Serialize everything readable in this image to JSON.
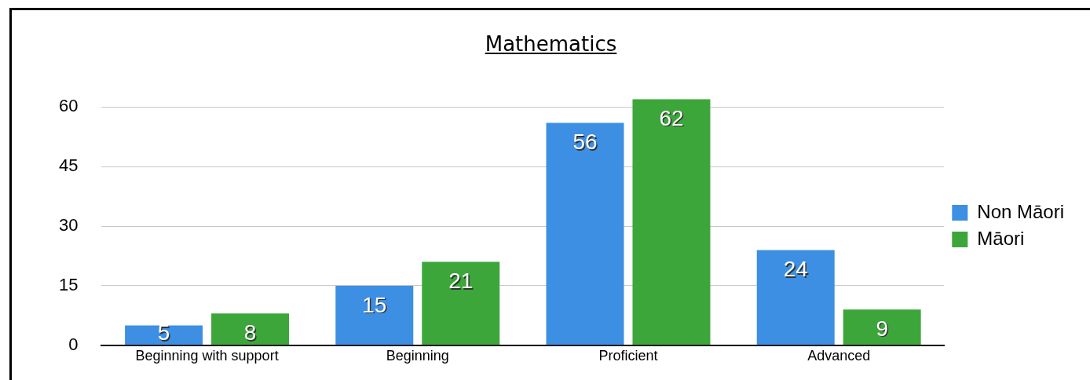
{
  "chart_data": {
    "type": "bar",
    "title": "Mathematics",
    "categories": [
      "Beginning with support",
      "Beginning",
      "Proficient",
      "Advanced"
    ],
    "series": [
      {
        "name": "Non Māori",
        "color": "#3d8fe3",
        "values": [
          5,
          15,
          56,
          24
        ]
      },
      {
        "name": "Māori",
        "color": "#3ca63a",
        "values": [
          8,
          21,
          62,
          9
        ]
      }
    ],
    "ylim": [
      0,
      62
    ],
    "yticks": [
      0,
      15,
      30,
      45,
      60
    ],
    "grid": "y",
    "legend": "right",
    "data_labels": true
  }
}
